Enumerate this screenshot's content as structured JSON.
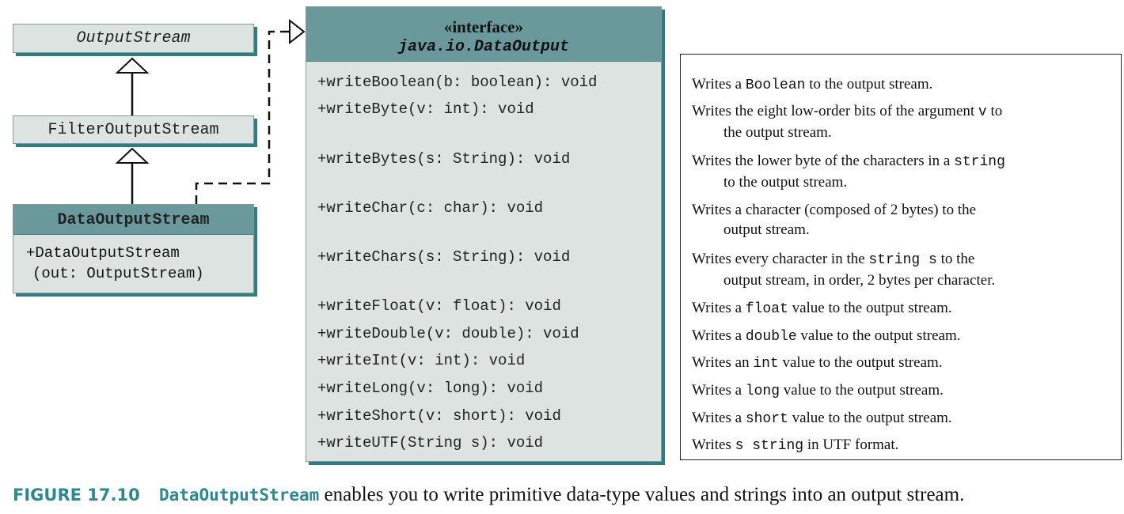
{
  "classes": {
    "output_stream": "OutputStream",
    "filter_output_stream": "FilterOutputStream",
    "data_output_stream": {
      "name": "DataOutputStream",
      "constructor_line1": "+DataOutputStream",
      "constructor_line2": "(out: OutputStream)"
    }
  },
  "interface": {
    "stereotype": "«interface»",
    "name": "java.io.DataOutput",
    "methods": [
      "+writeBoolean(b: boolean): void",
      "+writeByte(v: int): void",
      "+writeBytes(s: String): void",
      "+writeChar(c: char): void",
      "+writeChars(s: String): void",
      "+writeFloat(v: float): void",
      "+writeDouble(v: double): void",
      "+writeInt(v: int): void",
      "+writeLong(v: long): void",
      "+writeShort(v: short): void",
      "+writeUTF(String s): void"
    ]
  },
  "descriptions": [
    {
      "parts": [
        {
          "t": "Writes a "
        },
        {
          "c": "Boolean"
        },
        {
          "t": " to the output stream."
        }
      ]
    },
    {
      "parts": [
        {
          "t": "Writes the eight low-order bits of the argument "
        },
        {
          "c": "v"
        },
        {
          "t": " to"
        },
        {
          "br": true
        },
        {
          "t": "the output stream."
        }
      ]
    },
    {
      "parts": [
        {
          "t": "Writes the lower byte of the characters in a "
        },
        {
          "c": "string"
        },
        {
          "br": true
        },
        {
          "t": "to the output stream."
        }
      ]
    },
    {
      "parts": [
        {
          "t": "Writes a character (composed of 2 bytes) to the"
        },
        {
          "br": true
        },
        {
          "t": "output stream."
        }
      ]
    },
    {
      "parts": [
        {
          "t": "Writes every character in the "
        },
        {
          "c": "string s"
        },
        {
          "t": " to the"
        },
        {
          "br": true
        },
        {
          "t": "output stream, in order, 2 bytes per character."
        }
      ]
    },
    {
      "parts": [
        {
          "t": "Writes a "
        },
        {
          "c": "float"
        },
        {
          "t": " value to the output stream."
        }
      ]
    },
    {
      "parts": [
        {
          "t": "Writes a "
        },
        {
          "c": "double"
        },
        {
          "t": " value to the output stream."
        }
      ]
    },
    {
      "parts": [
        {
          "t": "Writes an "
        },
        {
          "c": "int"
        },
        {
          "t": " value to the output stream."
        }
      ]
    },
    {
      "parts": [
        {
          "t": "Writes a "
        },
        {
          "c": "long"
        },
        {
          "t": " value to the output stream."
        }
      ]
    },
    {
      "parts": [
        {
          "t": "Writes a "
        },
        {
          "c": "short"
        },
        {
          "t": " value to the output stream."
        }
      ]
    },
    {
      "parts": [
        {
          "t": "Writes "
        },
        {
          "c": "s string"
        },
        {
          "t": " in UTF format."
        }
      ]
    }
  ],
  "caption": {
    "label": "FIGURE 17.10",
    "class_name": "DataOutputStream",
    "text": "enables you to write primitive data-type values and strings into an output stream."
  }
}
